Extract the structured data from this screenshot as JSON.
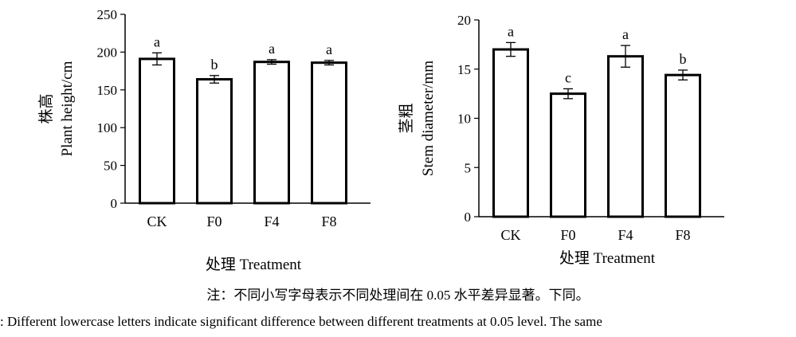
{
  "chart_data": [
    {
      "type": "bar",
      "categories": [
        "CK",
        "F0",
        "F4",
        "F8"
      ],
      "values": [
        191,
        164,
        187,
        186
      ],
      "errors": [
        8,
        5,
        3,
        3
      ],
      "significance": [
        "a",
        "b",
        "a",
        "a"
      ],
      "ylabel_cn": "株高",
      "ylabel": "Plant height/cm",
      "xlabel": "处理 Treatment",
      "ylim": [
        0,
        250
      ],
      "yticks": [
        0,
        50,
        100,
        150,
        200,
        250
      ]
    },
    {
      "type": "bar",
      "categories": [
        "CK",
        "F0",
        "F4",
        "F8"
      ],
      "values": [
        17.0,
        12.5,
        16.3,
        14.4
      ],
      "errors": [
        0.7,
        0.5,
        1.1,
        0.5
      ],
      "significance": [
        "a",
        "c",
        "a",
        "b"
      ],
      "ylabel_cn": "茎粗",
      "ylabel": "Stem diameter/mm",
      "xlabel": "处理 Treatment",
      "ylim": [
        0,
        20
      ],
      "yticks": [
        0,
        5,
        10,
        15,
        20
      ]
    }
  ],
  "notes": {
    "cn": "注：不同小写字母表示不同处理间在 0.05 水平差异显著。下同。",
    "en": ": Different lowercase letters  indicate significant difference between different treatments at 0.05 level. The same"
  },
  "colors": {
    "bar_fill": "#ffffff",
    "stroke": "#000000"
  }
}
